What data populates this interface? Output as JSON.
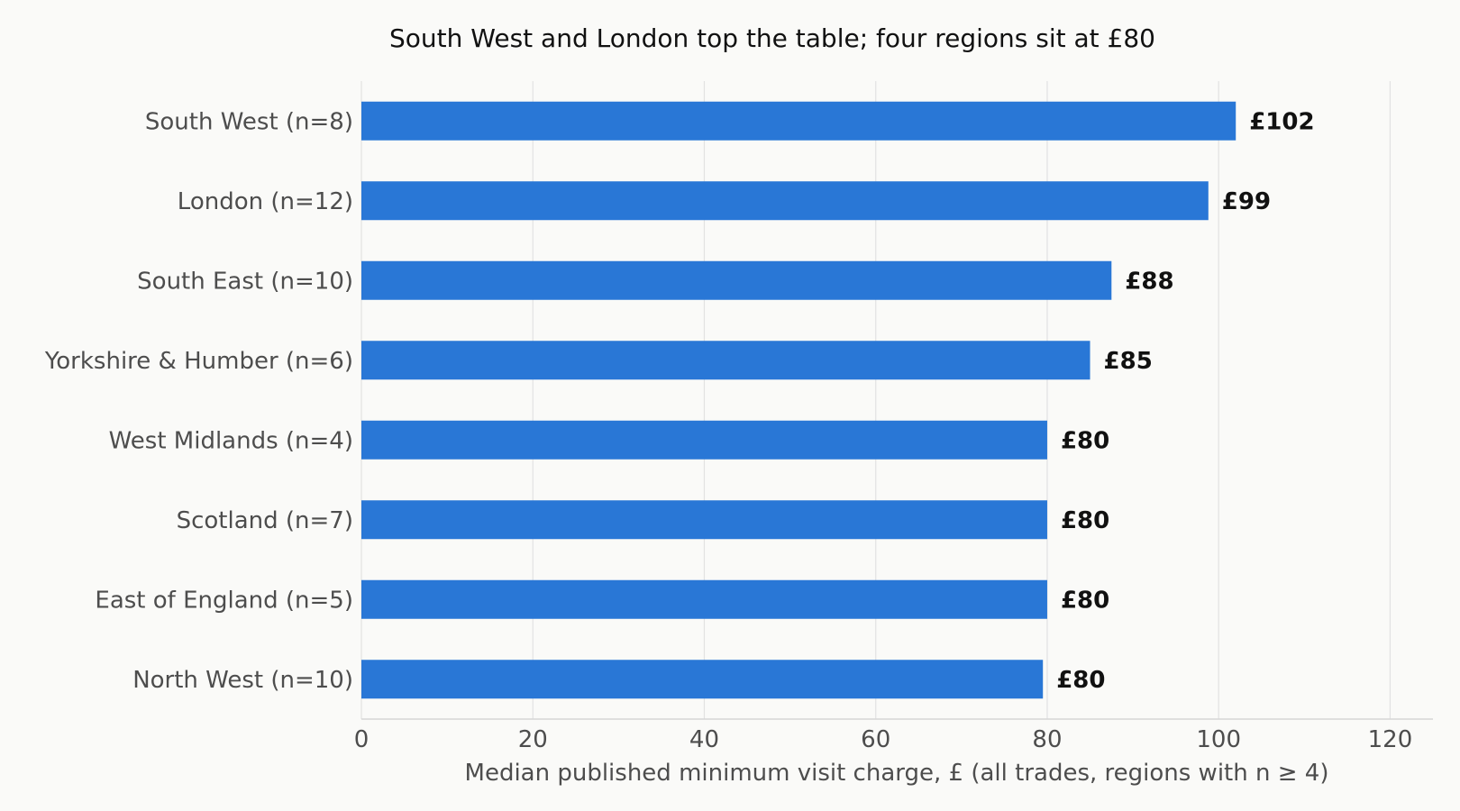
{
  "chart_data": {
    "type": "bar",
    "orientation": "horizontal",
    "title": "South West and London top the table; four regions sit at £80",
    "xlabel": "Median published minimum visit charge, £ (all trades, regions with n ≥ 4)",
    "ylabel": "",
    "xlim": [
      0,
      125
    ],
    "xticks": [
      0,
      20,
      40,
      60,
      80,
      100,
      120
    ],
    "grid": "vertical",
    "categories": [
      "South West (n=8)",
      "London (n=12)",
      "South East (n=10)",
      "Yorkshire & Humber (n=6)",
      "West Midlands (n=4)",
      "Scotland (n=7)",
      "East of England (n=5)",
      "North West (n=10)"
    ],
    "values": [
      102,
      98.8,
      87.5,
      85,
      80,
      80,
      80,
      79.5
    ],
    "data_labels": [
      "£102",
      "£99",
      "£88",
      "£85",
      "£80",
      "£80",
      "£80",
      "£80"
    ],
    "colors": {
      "bar": "#2977d6",
      "grid": "#e2e2e2",
      "background": "#fafaf8"
    }
  }
}
